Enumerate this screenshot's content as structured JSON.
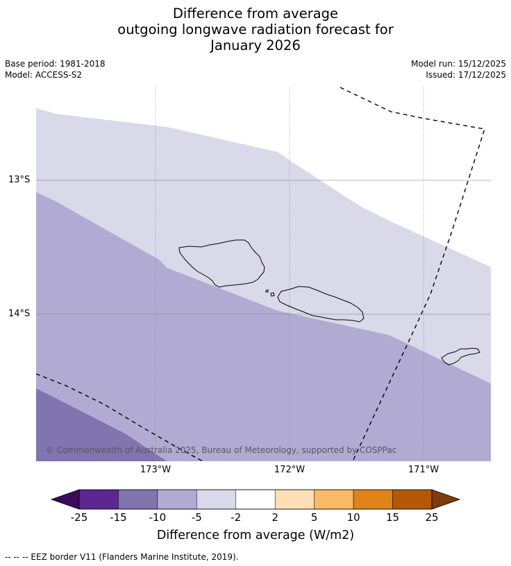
{
  "title": {
    "line1": "Difference from average",
    "line2": "outgoing longwave radiation forecast for",
    "line3": "January 2026"
  },
  "meta": {
    "base_period": "Base period: 1981-2018",
    "model": "Model: ACCESS-S2",
    "model_run": "Model run: 15/12/2025",
    "issued": "Issued: 17/12/2025"
  },
  "map": {
    "lat_labels": [
      "13°S",
      "14°S"
    ],
    "lon_labels": [
      "173°W",
      "172°W",
      "171°W"
    ],
    "copyright": "© Commonwealth of Australia 2025, Bureau of Meteorology, supported by COSPPac",
    "fill_colors": {
      "band_-2_to_-5": "#d9d9ea",
      "band_-5_to_-10": "#b1abd3",
      "band_-10_to_-15": "#8075ae"
    }
  },
  "colorbar": {
    "ticks": [
      "-25",
      "-15",
      "-10",
      "-5",
      "-2",
      "2",
      "5",
      "10",
      "15",
      "25"
    ],
    "colors": [
      "#3c0a5c",
      "#5d2690",
      "#8075ae",
      "#b1abd3",
      "#d9d9ea",
      "#ffffff",
      "#fddfb5",
      "#fbb867",
      "#e08318",
      "#b35807",
      "#7f3b0a"
    ],
    "label": "Difference from average (W/m2)"
  },
  "footnote": "--  --  -- EEZ border V11 (Flanders Marine Institute, 2019)."
}
